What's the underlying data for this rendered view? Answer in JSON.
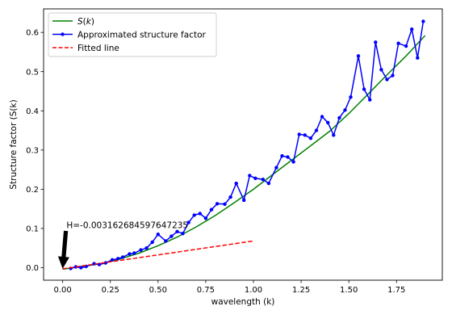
{
  "chart_data": {
    "type": "line",
    "xlabel": "wavelength (k)",
    "ylabel": "Structure factor (S(k)",
    "xlim": [
      -0.1,
      1.99
    ],
    "ylim": [
      -0.032,
      0.66
    ],
    "xticks": [
      0.0,
      0.25,
      0.5,
      0.75,
      1.0,
      1.25,
      1.5,
      1.75
    ],
    "xtick_labels": [
      "0.00",
      "0.25",
      "0.50",
      "0.75",
      "1.00",
      "1.25",
      "1.50",
      "1.75"
    ],
    "yticks": [
      0.0,
      0.1,
      0.2,
      0.3,
      0.4,
      0.5,
      0.6
    ],
    "ytick_labels": [
      "0.0",
      "0.1",
      "0.2",
      "0.3",
      "0.4",
      "0.5",
      "0.6"
    ],
    "grid": false,
    "legend_position": "top-left",
    "series": [
      {
        "name": "S(k)",
        "color": "#008000",
        "style": "solid",
        "x": [
          0.0,
          0.1,
          0.2,
          0.3,
          0.4,
          0.5,
          0.6,
          0.7,
          0.8,
          0.9,
          1.0,
          1.1,
          1.2,
          1.3,
          1.4,
          1.5,
          1.6,
          1.7,
          1.8,
          1.9
        ],
        "y": [
          -0.004,
          0.003,
          0.01,
          0.022,
          0.037,
          0.056,
          0.078,
          0.104,
          0.133,
          0.166,
          0.2,
          0.237,
          0.274,
          0.311,
          0.348,
          0.393,
          0.442,
          0.492,
          0.54,
          0.592
        ]
      },
      {
        "name": "Approximated structure factor",
        "color": "#0000ff",
        "style": "solid-marker",
        "x": [
          0.042,
          0.069,
          0.096,
          0.123,
          0.165,
          0.192,
          0.225,
          0.26,
          0.29,
          0.315,
          0.35,
          0.375,
          0.41,
          0.44,
          0.47,
          0.5,
          0.54,
          0.57,
          0.6,
          0.63,
          0.66,
          0.69,
          0.72,
          0.75,
          0.78,
          0.81,
          0.85,
          0.88,
          0.91,
          0.95,
          0.98,
          1.01,
          1.05,
          1.08,
          1.12,
          1.15,
          1.18,
          1.21,
          1.24,
          1.27,
          1.3,
          1.33,
          1.36,
          1.39,
          1.42,
          1.45,
          1.48,
          1.51,
          1.55,
          1.58,
          1.61,
          1.64,
          1.67,
          1.7,
          1.73,
          1.76,
          1.8,
          1.83,
          1.86,
          1.89
        ],
        "y": [
          -0.002,
          0.002,
          0.0,
          0.003,
          0.01,
          0.008,
          0.012,
          0.02,
          0.023,
          0.027,
          0.035,
          0.037,
          0.045,
          0.05,
          0.065,
          0.085,
          0.068,
          0.08,
          0.092,
          0.087,
          0.115,
          0.134,
          0.138,
          0.126,
          0.148,
          0.163,
          0.162,
          0.18,
          0.215,
          0.172,
          0.235,
          0.228,
          0.225,
          0.215,
          0.255,
          0.285,
          0.282,
          0.27,
          0.34,
          0.338,
          0.33,
          0.35,
          0.385,
          0.37,
          0.338,
          0.382,
          0.402,
          0.435,
          0.54,
          0.455,
          0.428,
          0.575,
          0.505,
          0.48,
          0.49,
          0.572,
          0.565,
          0.608,
          0.535,
          0.628
        ]
      },
      {
        "name": "Fitted line",
        "color": "#ff0000",
        "style": "dashed",
        "x": [
          0.0,
          1.0
        ],
        "y": [
          -0.003,
          0.068
        ]
      }
    ],
    "annotations": [
      {
        "text": "H=-0.003162684597647235",
        "x": 0.0,
        "y": -0.003,
        "text_x": 0.02,
        "text_y": 0.101,
        "arrow": true
      }
    ]
  }
}
